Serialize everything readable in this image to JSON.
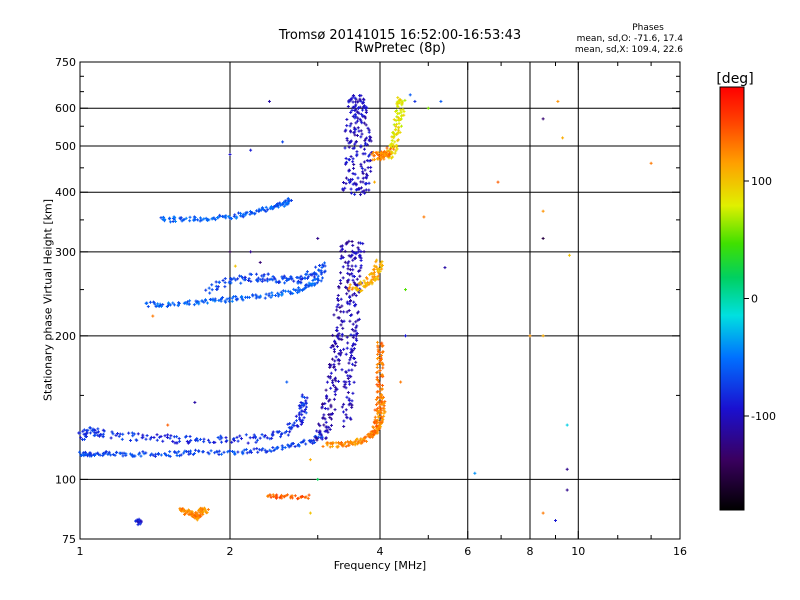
{
  "chart_data": {
    "type": "scatter",
    "title": "Tromsø 20141015 16:52:00-16:53:43",
    "subtitle": "RwPretec (8p)",
    "stats": {
      "heading": "Phases",
      "line1": "mean, sd,O: -71.6, 17.4",
      "line2": "mean, sd,X: 109.4, 22.6"
    },
    "xlabel": "Frequency [MHz]",
    "ylabel": "Stationary phase Virtual Height [km]",
    "x_scale": "log",
    "y_scale": "log",
    "xlim": [
      1,
      16
    ],
    "ylim": [
      75,
      750
    ],
    "x_ticks": [
      {
        "value": 1,
        "label": "1"
      },
      {
        "value": 2,
        "label": "2"
      },
      {
        "value": 4,
        "label": "4"
      },
      {
        "value": 6,
        "label": "6"
      },
      {
        "value": 8,
        "label": "8"
      },
      {
        "value": 10,
        "label": "10"
      },
      {
        "value": 16,
        "label": "16"
      }
    ],
    "x_minor_ticks": [
      3,
      5,
      7,
      9,
      12,
      14
    ],
    "y_ticks": [
      {
        "value": 75,
        "label": "75"
      },
      {
        "value": 100,
        "label": "100"
      },
      {
        "value": 200,
        "label": "200"
      },
      {
        "value": 300,
        "label": "300"
      },
      {
        "value": 400,
        "label": "400"
      },
      {
        "value": 500,
        "label": "500"
      },
      {
        "value": 600,
        "label": "600"
      },
      {
        "value": 750,
        "label": "750"
      }
    ],
    "y_minor_ticks": [
      150,
      250,
      350,
      450,
      550,
      650,
      700
    ],
    "grid_x": [
      2,
      4,
      6,
      8,
      10
    ],
    "grid_y": [
      100,
      200,
      300,
      400,
      500,
      600
    ],
    "grid": true,
    "colorbar": {
      "label": "[deg]",
      "range": [
        -180,
        180
      ],
      "ticks": [
        {
          "value": 100,
          "label": "100"
        },
        {
          "value": 0,
          "label": "0"
        },
        {
          "value": -100,
          "label": "-100"
        }
      ]
    },
    "traces": [
      {
        "name": "",
        "phase": -70,
        "spread": 0.012,
        "points": [
          [
            1.0,
            113
          ],
          [
            1.05,
            113
          ],
          [
            1.15,
            113
          ],
          [
            1.3,
            113
          ],
          [
            1.5,
            113
          ],
          [
            1.7,
            114
          ],
          [
            2.0,
            114
          ],
          [
            2.3,
            115
          ],
          [
            2.6,
            117
          ],
          [
            2.9,
            120
          ],
          [
            3.05,
            124
          ]
        ]
      },
      {
        "name": "",
        "phase": -80,
        "spread": 0.02,
        "points": [
          [
            1.0,
            123
          ],
          [
            1.05,
            126
          ],
          [
            1.1,
            125
          ],
          [
            1.3,
            123
          ],
          [
            1.5,
            122
          ],
          [
            1.7,
            121
          ],
          [
            2.0,
            121
          ],
          [
            2.3,
            122
          ],
          [
            2.6,
            126
          ],
          [
            2.75,
            132
          ],
          [
            2.8,
            140
          ],
          [
            2.82,
            148
          ]
        ]
      },
      {
        "name": "",
        "phase": -108,
        "spread": 0.03,
        "points": [
          [
            3.05,
            122
          ],
          [
            3.1,
            130
          ],
          [
            3.15,
            140
          ],
          [
            3.2,
            155
          ],
          [
            3.25,
            170
          ],
          [
            3.28,
            185
          ],
          [
            3.3,
            200
          ],
          [
            3.35,
            230
          ],
          [
            3.4,
            260
          ],
          [
            3.42,
            290
          ],
          [
            3.45,
            320
          ]
        ]
      },
      {
        "name": "",
        "phase": -102,
        "spread": 0.025,
        "points": [
          [
            3.4,
            130
          ],
          [
            3.45,
            150
          ],
          [
            3.5,
            170
          ],
          [
            3.5,
            190
          ],
          [
            3.55,
            210
          ],
          [
            3.55,
            240
          ],
          [
            3.6,
            260
          ],
          [
            3.6,
            290
          ],
          [
            3.65,
            310
          ]
        ]
      },
      {
        "name": "",
        "phase": -100,
        "spread": 0.03,
        "points": [
          [
            3.45,
            400
          ],
          [
            3.5,
            450
          ],
          [
            3.5,
            500
          ],
          [
            3.5,
            550
          ],
          [
            3.55,
            600
          ],
          [
            3.6,
            630
          ],
          [
            3.65,
            600
          ],
          [
            3.7,
            550
          ],
          [
            3.75,
            500
          ],
          [
            3.75,
            450
          ],
          [
            3.7,
            410
          ],
          [
            3.6,
            405
          ]
        ]
      },
      {
        "name": "",
        "phase": 125,
        "spread": 0.012,
        "points": [
          [
            3.1,
            118
          ],
          [
            3.3,
            118
          ],
          [
            3.5,
            119
          ],
          [
            3.7,
            121
          ],
          [
            3.85,
            124
          ],
          [
            3.95,
            127
          ],
          [
            4.0,
            132
          ],
          [
            4.05,
            140
          ],
          [
            4.05,
            150
          ]
        ]
      },
      {
        "name": "",
        "phase": 130,
        "spread": 0.015,
        "points": [
          [
            3.9,
            125
          ],
          [
            3.95,
            135
          ],
          [
            4.0,
            150
          ],
          [
            4.0,
            165
          ],
          [
            4.0,
            180
          ],
          [
            4.0,
            195
          ]
        ]
      },
      {
        "name": "",
        "phase": 110,
        "spread": 0.02,
        "points": [
          [
            3.5,
            250
          ],
          [
            3.7,
            255
          ],
          [
            3.85,
            262
          ],
          [
            3.95,
            272
          ],
          [
            3.98,
            285
          ]
        ]
      },
      {
        "name": "",
        "phase": 85,
        "spread": 0.02,
        "points": [
          [
            4.2,
            470
          ],
          [
            4.25,
            500
          ],
          [
            4.3,
            530
          ],
          [
            4.35,
            560
          ],
          [
            4.4,
            600
          ],
          [
            4.4,
            640
          ]
        ]
      },
      {
        "name": "",
        "phase": 125,
        "spread": 0.02,
        "points": [
          [
            3.9,
            475
          ],
          [
            4.0,
            478
          ],
          [
            4.1,
            480
          ],
          [
            4.2,
            490
          ]
        ]
      },
      {
        "name": "",
        "phase": -58,
        "spread": 0.012,
        "points": [
          [
            1.35,
            233
          ],
          [
            1.5,
            233
          ],
          [
            1.7,
            235
          ],
          [
            1.9,
            237
          ],
          [
            2.1,
            240
          ],
          [
            2.4,
            243
          ],
          [
            2.7,
            248
          ],
          [
            2.9,
            255
          ],
          [
            3.05,
            265
          ]
        ]
      },
      {
        "name": "",
        "phase": -72,
        "spread": 0.02,
        "points": [
          [
            1.8,
            250
          ],
          [
            2.0,
            262
          ],
          [
            2.2,
            265
          ],
          [
            2.4,
            265
          ],
          [
            2.6,
            262
          ],
          [
            2.8,
            262
          ],
          [
            3.0,
            272
          ],
          [
            3.1,
            280
          ]
        ]
      },
      {
        "name": "",
        "phase": -60,
        "spread": 0.012,
        "points": [
          [
            1.45,
            350
          ],
          [
            1.6,
            352
          ],
          [
            1.8,
            352
          ],
          [
            2.0,
            355
          ],
          [
            2.2,
            362
          ],
          [
            2.4,
            370
          ],
          [
            2.55,
            378
          ],
          [
            2.65,
            385
          ]
        ]
      },
      {
        "name": "",
        "phase": -90,
        "spread": 0.01,
        "points": [
          [
            1.3,
            82
          ],
          [
            1.32,
            81
          ]
        ]
      },
      {
        "name": "",
        "phase": 125,
        "spread": 0.012,
        "points": [
          [
            1.6,
            87
          ],
          [
            1.65,
            85
          ],
          [
            1.7,
            84
          ],
          [
            1.72,
            83
          ],
          [
            1.75,
            86
          ],
          [
            1.8,
            86
          ]
        ]
      },
      {
        "name": "",
        "phase": 140,
        "spread": 0.01,
        "points": [
          [
            2.4,
            92
          ],
          [
            2.55,
            92
          ],
          [
            2.9,
            92
          ]
        ]
      }
    ],
    "scatter_points": [
      {
        "x": 2.4,
        "y": 620,
        "phase": -110
      },
      {
        "x": 2.2,
        "y": 490,
        "phase": -90
      },
      {
        "x": 2.0,
        "y": 480,
        "phase": -95
      },
      {
        "x": 2.55,
        "y": 510,
        "phase": -70
      },
      {
        "x": 4.6,
        "y": 640,
        "phase": -60
      },
      {
        "x": 4.7,
        "y": 620,
        "phase": -80
      },
      {
        "x": 5.3,
        "y": 620,
        "phase": -60
      },
      {
        "x": 5.0,
        "y": 600,
        "phase": 60
      },
      {
        "x": 6.9,
        "y": 420,
        "phase": 140
      },
      {
        "x": 8.5,
        "y": 570,
        "phase": -130
      },
      {
        "x": 9.1,
        "y": 620,
        "phase": 120
      },
      {
        "x": 9.3,
        "y": 520,
        "phase": 110
      },
      {
        "x": 14.0,
        "y": 460,
        "phase": 130
      },
      {
        "x": 8.5,
        "y": 365,
        "phase": 120
      },
      {
        "x": 8.5,
        "y": 320,
        "phase": -150
      },
      {
        "x": 9.6,
        "y": 295,
        "phase": 100
      },
      {
        "x": 5.4,
        "y": 278,
        "phase": -110
      },
      {
        "x": 4.9,
        "y": 355,
        "phase": 130
      },
      {
        "x": 4.5,
        "y": 250,
        "phase": 50
      },
      {
        "x": 4.5,
        "y": 200,
        "phase": -90
      },
      {
        "x": 4.4,
        "y": 160,
        "phase": 130
      },
      {
        "x": 8.0,
        "y": 200,
        "phase": 120
      },
      {
        "x": 8.5,
        "y": 200,
        "phase": 110
      },
      {
        "x": 9.5,
        "y": 130,
        "phase": -20
      },
      {
        "x": 9.5,
        "y": 105,
        "phase": -120
      },
      {
        "x": 9.5,
        "y": 95,
        "phase": -120
      },
      {
        "x": 6.2,
        "y": 103,
        "phase": -40
      },
      {
        "x": 8.5,
        "y": 85,
        "phase": 130
      },
      {
        "x": 9.0,
        "y": 82,
        "phase": -90
      },
      {
        "x": 3.0,
        "y": 100,
        "phase": 20
      },
      {
        "x": 2.9,
        "y": 110,
        "phase": 110
      },
      {
        "x": 1.7,
        "y": 145,
        "phase": -110
      },
      {
        "x": 1.5,
        "y": 130,
        "phase": 140
      },
      {
        "x": 2.0,
        "y": 300,
        "phase": -150
      },
      {
        "x": 2.05,
        "y": 280,
        "phase": 100
      },
      {
        "x": 2.2,
        "y": 300,
        "phase": -120
      },
      {
        "x": 2.3,
        "y": 285,
        "phase": -130
      },
      {
        "x": 1.4,
        "y": 220,
        "phase": 130
      },
      {
        "x": 3.9,
        "y": 420,
        "phase": 110
      },
      {
        "x": 2.9,
        "y": 85,
        "phase": 100
      },
      {
        "x": 2.6,
        "y": 160,
        "phase": -60
      },
      {
        "x": 3.0,
        "y": 320,
        "phase": -120
      }
    ]
  }
}
